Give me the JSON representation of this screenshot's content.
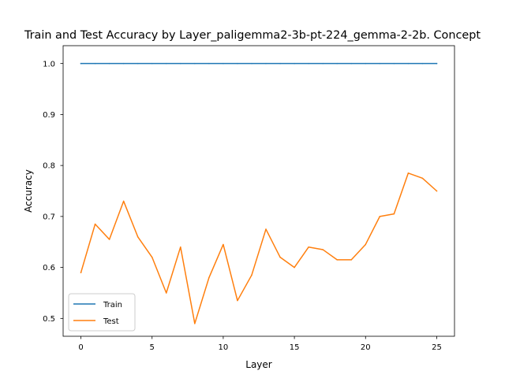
{
  "chart_data": {
    "type": "line",
    "title": "Train and Test Accuracy by Layer_paligemma2-3b-pt-224_gemma-2-2b. Concept",
    "xlabel": "Layer",
    "ylabel": "Accuracy",
    "xlim": [
      -1.25,
      26.25
    ],
    "ylim": [
      0.465,
      1.035
    ],
    "xticks": [
      0,
      5,
      10,
      15,
      20,
      25
    ],
    "xtick_labels": [
      "0",
      "5",
      "10",
      "15",
      "20",
      "25"
    ],
    "yticks": [
      0.5,
      0.6,
      0.7,
      0.8,
      0.9,
      1.0
    ],
    "ytick_labels": [
      "0.5",
      "0.6",
      "0.7",
      "0.8",
      "0.9",
      "1.0"
    ],
    "grid": false,
    "legend_position": "lower-left",
    "x": [
      0,
      1,
      2,
      3,
      4,
      5,
      6,
      7,
      8,
      9,
      10,
      11,
      12,
      13,
      14,
      15,
      16,
      17,
      18,
      19,
      20,
      21,
      22,
      23,
      24,
      25
    ],
    "series": [
      {
        "name": "Train",
        "color": "#1f77b4",
        "values": [
          1.0,
          1.0,
          1.0,
          1.0,
          1.0,
          1.0,
          1.0,
          1.0,
          1.0,
          1.0,
          1.0,
          1.0,
          1.0,
          1.0,
          1.0,
          1.0,
          1.0,
          1.0,
          1.0,
          1.0,
          1.0,
          1.0,
          1.0,
          1.0,
          1.0,
          1.0
        ]
      },
      {
        "name": "Test",
        "color": "#ff7f0e",
        "values": [
          0.59,
          0.685,
          0.655,
          0.73,
          0.66,
          0.62,
          0.55,
          0.64,
          0.49,
          0.58,
          0.645,
          0.535,
          0.585,
          0.675,
          0.62,
          0.6,
          0.64,
          0.635,
          0.615,
          0.615,
          0.645,
          0.7,
          0.705,
          0.785,
          0.775,
          0.75
        ]
      }
    ]
  }
}
